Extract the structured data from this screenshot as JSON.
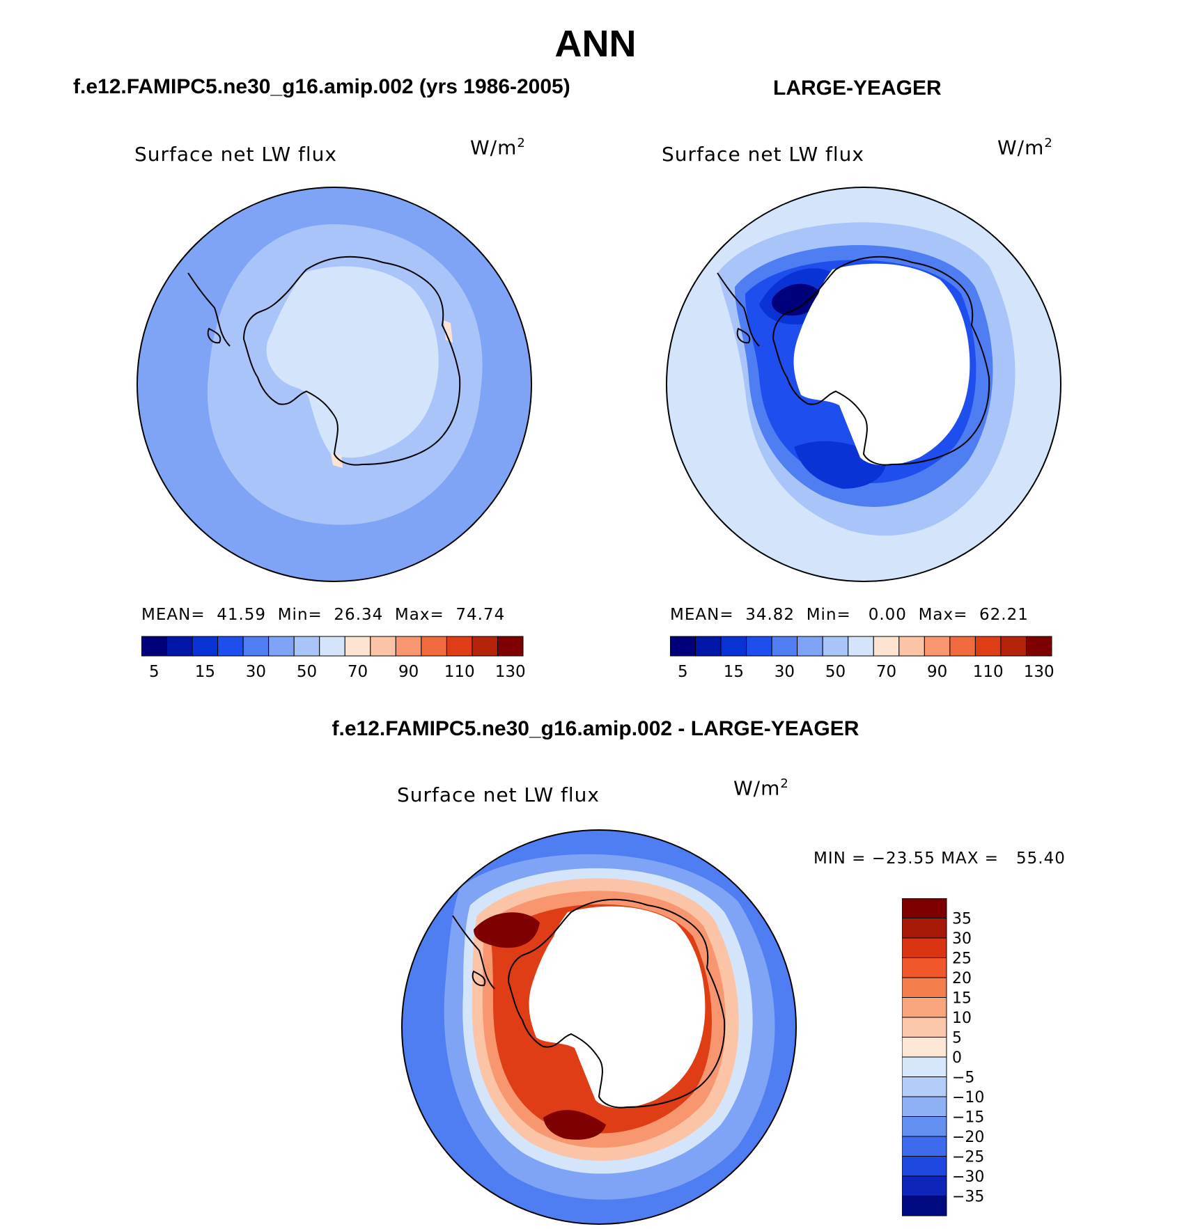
{
  "title": "ANN",
  "panels": [
    {
      "id": "model",
      "header": "f.e12.FAMIPC5.ne30_g16.amip.002 (yrs 1986-2005)",
      "variable": "Surface net LW flux",
      "units_base": "W/m",
      "units_exp": "2",
      "stats": {
        "mean_label": "MEAN=",
        "mean": "41.59",
        "min_label": "Min=",
        "min": "26.34",
        "max_label": "Max=",
        "max": "74.74"
      }
    },
    {
      "id": "obs",
      "header": "LARGE-YEAGER",
      "variable": "Surface net LW flux",
      "units_base": "W/m",
      "units_exp": "2",
      "stats": {
        "mean_label": "MEAN=",
        "mean": "34.82",
        "min_label": "Min=",
        "min": "0.00",
        "max_label": "Max=",
        "max": "62.21"
      }
    },
    {
      "id": "diff",
      "header": "f.e12.FAMIPC5.ne30_g16.amip.002 - LARGE-YEAGER",
      "variable": "Surface net LW flux",
      "units_base": "W/m",
      "units_exp": "2",
      "stats_text": "MIN = −23.55 MAX =   55.40"
    }
  ],
  "colorbar_horizontal": {
    "colors": [
      "#00007a",
      "#0017a8",
      "#0a33d6",
      "#1f4eef",
      "#4f7df2",
      "#7fa3f5",
      "#a9c4f9",
      "#d4e5fb",
      "#fde4d2",
      "#fbc4a6",
      "#f8976f",
      "#f16b3e",
      "#df3d15",
      "#b32408",
      "#7e0000"
    ],
    "tick_labels": [
      "5",
      "15",
      "30",
      "50",
      "70",
      "90",
      "110",
      "130"
    ]
  },
  "colorbar_vertical": {
    "colors_top_to_bottom": [
      "#7e0000",
      "#a81a08",
      "#d93512",
      "#f0582b",
      "#f57e4d",
      "#f9a67d",
      "#fbc8ac",
      "#fde6d5",
      "#d6e7fb",
      "#b4cdf8",
      "#8eb0f5",
      "#6490f1",
      "#3e6bee",
      "#1f48e0",
      "#0d25b8",
      "#000b80"
    ],
    "tick_labels": [
      "35",
      "30",
      "25",
      "20",
      "15",
      "10",
      "5",
      "0",
      "−5",
      "−10",
      "−15",
      "−20",
      "−25",
      "−30",
      "−35"
    ]
  },
  "map_colors": {
    "model_ocean": "#7fa3f5",
    "model_ring": "#a9c4f9",
    "model_continent": "#d4e5fb",
    "model_warm": "#fde4d2",
    "obs_ocean": "#d4e5fb",
    "obs_mid": "#a9c4f9",
    "obs_ring1": "#4f7df2",
    "obs_ring2": "#1f4eef",
    "obs_core": "#0a33d6",
    "obs_deep": "#00007a",
    "diff_outer": "#4f7df2",
    "diff_mid": "#7fa3f5",
    "diff_light": "#d4e5fb",
    "diff_warm1": "#fbc4a6",
    "diff_warm2": "#f8976f",
    "diff_warm3": "#df3d15",
    "diff_warm4": "#7e0000",
    "coastline": "#000000",
    "land_mask": "#ffffff"
  }
}
